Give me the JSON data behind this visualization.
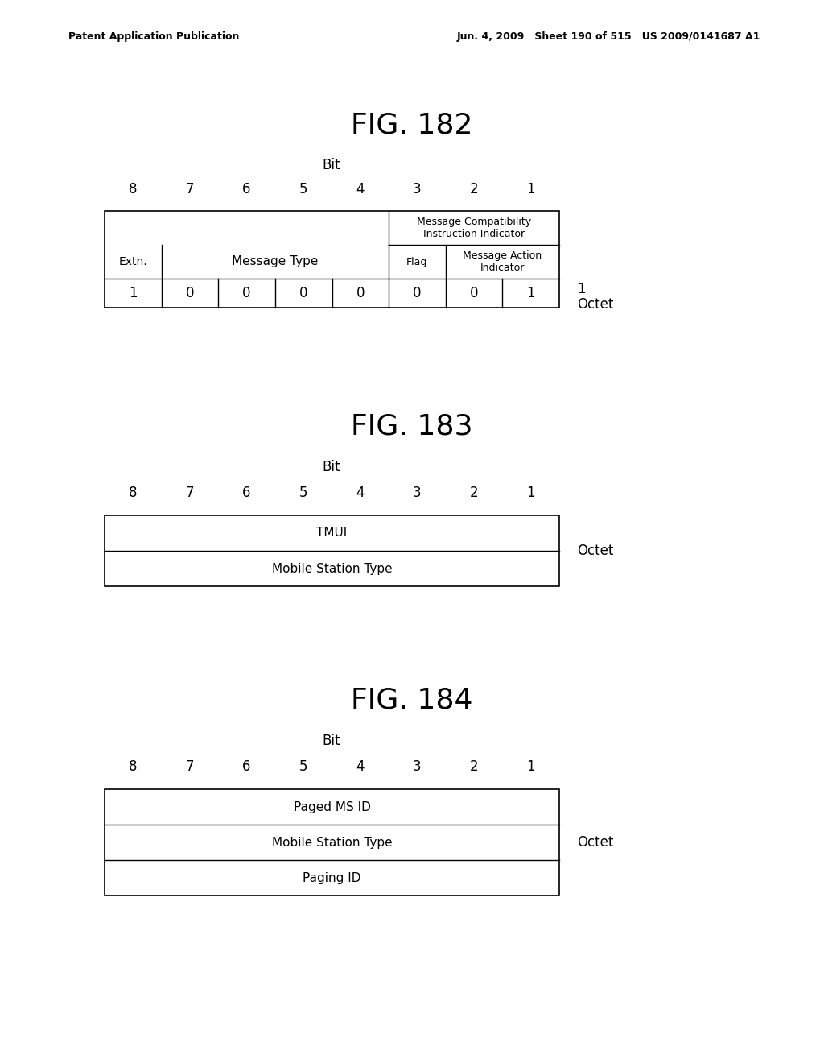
{
  "header_left": "Patent Application Publication",
  "header_right": "Jun. 4, 2009   Sheet 190 of 515   US 2009/0141687 A1",
  "fig182_title": "FIG. 182",
  "fig183_title": "FIG. 183",
  "fig184_title": "FIG. 184",
  "bit_label": "Bit",
  "bit_numbers": [
    "8",
    "7",
    "6",
    "5",
    "4",
    "3",
    "2",
    "1"
  ],
  "fig182_vals": [
    "1",
    "0",
    "0",
    "0",
    "0",
    "0",
    "0",
    "1"
  ],
  "fig182_octet_num": "1",
  "fig182_octet": "Octet",
  "fig183_rows": [
    "TMUI",
    "Mobile Station Type"
  ],
  "fig183_octet": "Octet",
  "fig184_rows": [
    "Paged MS ID",
    "Mobile Station Type",
    "Paging ID"
  ],
  "fig184_octet": "Octet",
  "bg_color": "#ffffff",
  "text_color": "#000000",
  "line_color": "#000000"
}
